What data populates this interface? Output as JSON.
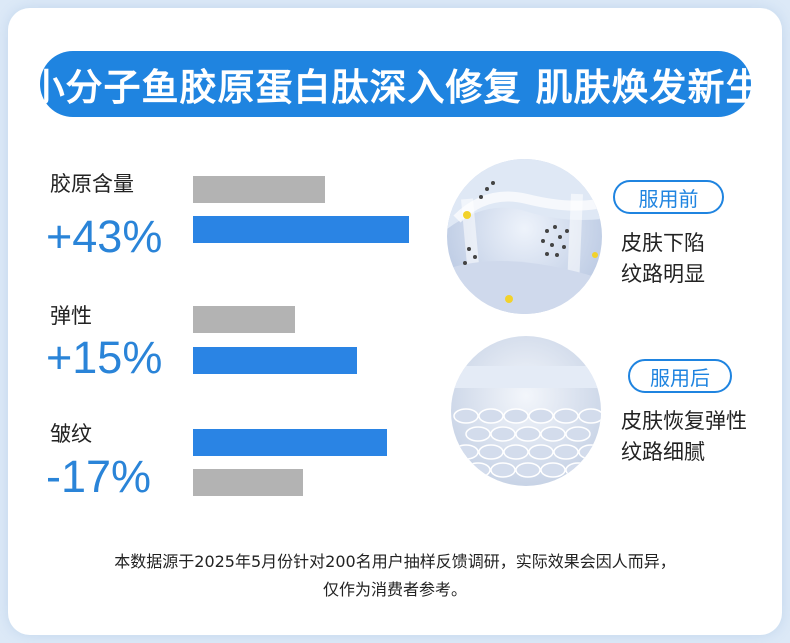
{
  "title": "小分子鱼胶原蛋白肽深入修复 肌肤焕发新生",
  "metrics": [
    {
      "label": "胶原含量",
      "value": "+43%",
      "before_level": 0.61,
      "after_level": 1.0
    },
    {
      "label": "弹性",
      "value": "+15%",
      "before_level": 0.47,
      "after_level": 0.76
    },
    {
      "label": "皱纹",
      "value": "-17%",
      "before_level": 0.51,
      "after_level": 0.9
    }
  ],
  "before": {
    "badge": "服用前",
    "line1": "皮肤下陷",
    "line2": "纹路明显"
  },
  "after": {
    "badge": "服用后",
    "line1": "皮肤恢复弹性",
    "line2": "纹路细腻"
  },
  "footnote": {
    "line1": "本数据源于2025年5月份针对200名用户抽样反馈调研，实际效果会因人而异，",
    "line2": "仅作为消费者参考。"
  },
  "colors": {
    "accent": "#1f84e0",
    "before_bar": "#b3b3b3",
    "after_bar": "#2a84e4"
  }
}
